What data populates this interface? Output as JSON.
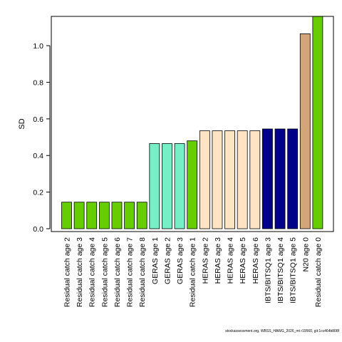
{
  "chart_data": {
    "type": "bar",
    "title": "",
    "xlabel": "",
    "ylabel": "SD",
    "ylim": [
      0,
      1.16
    ],
    "yticks": [
      0.0,
      0.2,
      0.4,
      0.6,
      0.8,
      1.0
    ],
    "ytick_labels": [
      "0.0",
      "0.2",
      "0.4",
      "0.6",
      "0.8",
      "1.0"
    ],
    "grid": false,
    "legend": "none",
    "categories": [
      "Residual catch age 2",
      "Residual catch age 3",
      "Residual catch age 4",
      "Residual catch age 5",
      "Residual catch age 6",
      "Residual catch age 7",
      "Residual catch age 8",
      "GERAS age 1",
      "GERAS age 2",
      "GERAS age 3",
      "Residual catch age 1",
      "HERAS age 2",
      "HERAS age 3",
      "HERAS age 4",
      "HERAS age 5",
      "HERAS age 6",
      "IBTS/BITSQ1 age 3",
      "IBTS/BITSQ1 age 4",
      "IBTS/BITSQ1 age 5",
      "N20 age 0",
      "Residual catch age 0"
    ],
    "values": [
      0.145,
      0.145,
      0.145,
      0.145,
      0.145,
      0.145,
      0.145,
      0.465,
      0.465,
      0.465,
      0.48,
      0.535,
      0.535,
      0.535,
      0.535,
      0.535,
      0.545,
      0.545,
      0.545,
      1.065,
      1.16
    ],
    "colors": [
      "#66CD00",
      "#66CD00",
      "#66CD00",
      "#66CD00",
      "#66CD00",
      "#66CD00",
      "#66CD00",
      "#76EEC6",
      "#76EEC6",
      "#76EEC6",
      "#66CD00",
      "#FFE4C4",
      "#FFE4C4",
      "#FFE4C4",
      "#FFE4C4",
      "#FFE4C4",
      "#00008B",
      "#00008B",
      "#00008B",
      "#D2A679",
      "#66CD00"
    ]
  },
  "footer": "stockassessment.org, WBSS_HAWG_2026_mt r19560, git:1cc464b808f"
}
